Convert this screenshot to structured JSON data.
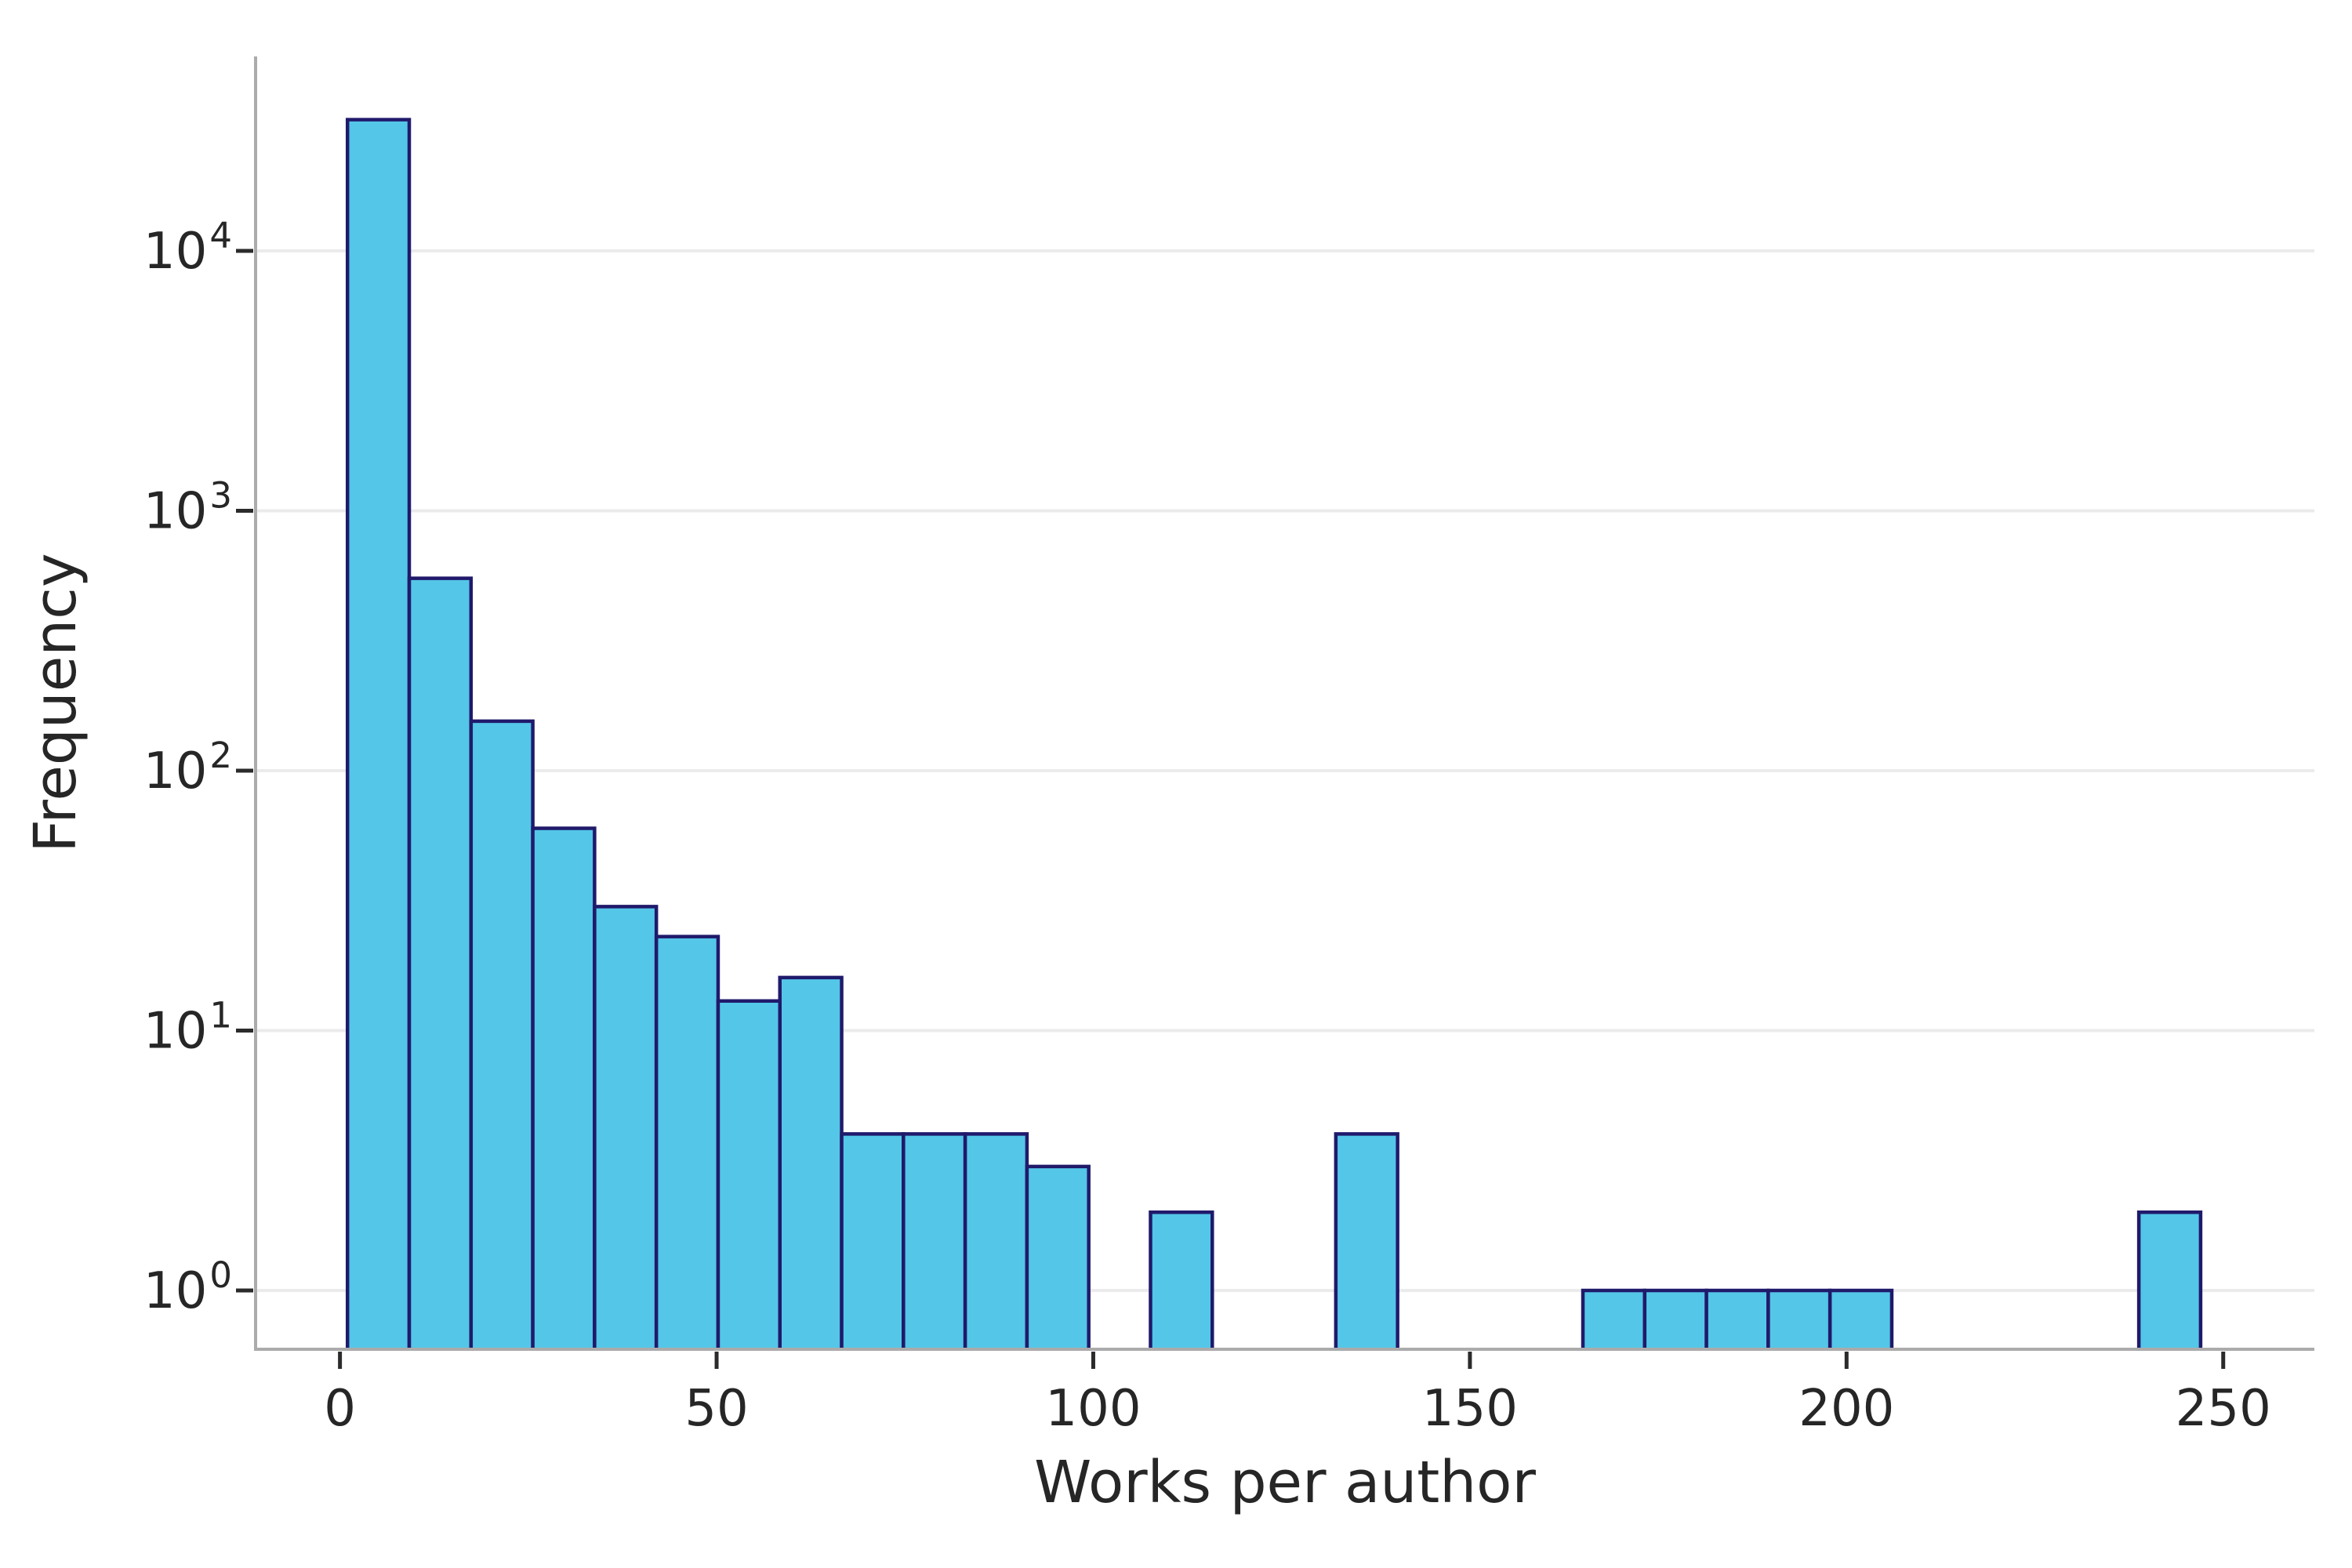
{
  "figure": {
    "background_color": "#ffffff"
  },
  "chart_data": {
    "type": "bar",
    "subtype": "histogram",
    "title": "",
    "xlabel": "Works per author",
    "ylabel": "Frequency",
    "yscale": "log",
    "grid": "horizontal-only",
    "legend": "none",
    "bar_fill_color": "#54c6e8",
    "bar_edge_color": "#201a6b",
    "grid_color": "#ebebeb",
    "spine_color": "#ababab",
    "tick_mark_color": "#2b2b2b",
    "text_color": "#262626",
    "bin_edges": [
      1,
      9.2,
      17.4,
      25.6,
      33.8,
      42,
      50.2,
      58.4,
      66.6,
      74.8,
      83,
      91.2,
      99.4,
      107.6,
      115.8,
      124,
      132.2,
      140.4,
      148.6,
      156.8,
      165,
      173.2,
      181.4,
      189.6,
      197.8,
      206,
      214.2,
      222.4,
      230.6,
      238.8,
      247
    ],
    "counts": [
      32000,
      550,
      155,
      60,
      30,
      23,
      13,
      16,
      4,
      4,
      4,
      3,
      0,
      2,
      0,
      0,
      4,
      0,
      0,
      0,
      1,
      1,
      1,
      1,
      1,
      0,
      0,
      0,
      0,
      2
    ],
    "x_ticks": [
      0,
      50,
      100,
      150,
      200,
      250
    ],
    "y_tick_exponents": [
      0,
      1,
      2,
      3,
      4
    ],
    "y_tick_base": "10",
    "xlim": [
      -11.2,
      262.1
    ],
    "ylim": [
      0.594,
      56000
    ]
  }
}
